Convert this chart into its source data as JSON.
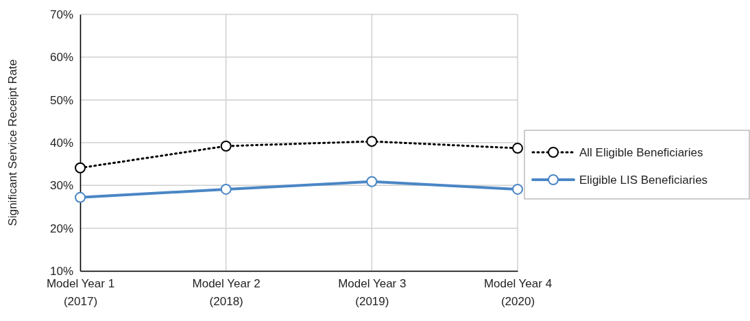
{
  "chart_data": {
    "type": "line",
    "ylabel": "Significant Service Receipt Rate",
    "categories": [
      "Model Year 1\n(2017)",
      "Model Year 2\n(2018)",
      "Model Year 3\n(2019)",
      "Model Year 4\n(2020)"
    ],
    "series": [
      {
        "name": "All Eligible Beneficiaries",
        "color": "#000000",
        "line_style": "dotted",
        "values": [
          34.1,
          39.2,
          40.3,
          38.7
        ]
      },
      {
        "name": "Eligible LIS Beneficiaries",
        "color": "#4a86c5",
        "line_style": "solid",
        "values": [
          27.2,
          29.1,
          30.9,
          29.1
        ]
      }
    ],
    "ylim": [
      10,
      70
    ],
    "yticks": [
      {
        "value": 10,
        "label": "10%"
      },
      {
        "value": 20,
        "label": "20%"
      },
      {
        "value": 30,
        "label": "30%"
      },
      {
        "value": 40,
        "label": "40%"
      },
      {
        "value": 50,
        "label": "50%"
      },
      {
        "value": 60,
        "label": "60%"
      },
      {
        "value": 70,
        "label": "70%"
      }
    ],
    "grid": true,
    "legend": "right",
    "marker": "circle"
  }
}
